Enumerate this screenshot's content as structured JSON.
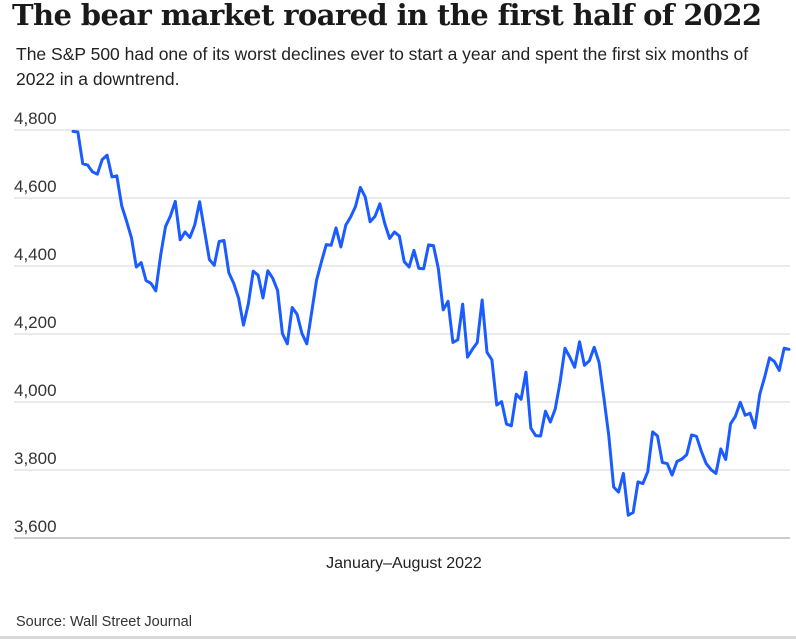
{
  "header": {
    "title": "The bear market roared in the first half of 2022",
    "subtitle": "The S&P 500 had one of its worst declines ever to start a year and spent the first six months of 2022 in a downtrend."
  },
  "footer": {
    "source": "Source: Wall Street Journal"
  },
  "chart_data": {
    "type": "line",
    "title": "The bear market roared in the first half of 2022",
    "subtitle": "The S&P 500 had one of its worst declines ever to start a year and spent the first six months of 2022 in a downtrend.",
    "xlabel": "January–August 2022",
    "ylabel": "",
    "ylim": [
      3600,
      4800
    ],
    "yticks": [
      4800,
      4600,
      4400,
      4200,
      4000,
      3800,
      3600
    ],
    "ytick_labels": [
      "4,800",
      "4,600",
      "4,400",
      "4,200",
      "4,000",
      "3,800",
      "3,600"
    ],
    "grid": true,
    "legend": "none",
    "colors": {
      "line": "#1a5cff",
      "grid": "#d4d4d4",
      "axis": "#999999"
    },
    "series": [
      {
        "values": [
          4796,
          4794,
          4701,
          4697,
          4677,
          4670,
          4713,
          4726,
          4662,
          4665,
          4577,
          4532,
          4483,
          4397,
          4410,
          4357,
          4349,
          4327,
          4432,
          4516,
          4547,
          4590,
          4477,
          4500,
          4484,
          4521,
          4589,
          4504,
          4419,
          4402,
          4472,
          4475,
          4380,
          4349,
          4305,
          4226,
          4289,
          4385,
          4373,
          4306,
          4386,
          4364,
          4328,
          4201,
          4171,
          4278,
          4258,
          4202,
          4171,
          4264,
          4358,
          4412,
          4463,
          4461,
          4512,
          4456,
          4520,
          4544,
          4575,
          4631,
          4603,
          4530,
          4546,
          4583,
          4525,
          4481,
          4500,
          4488,
          4413,
          4397,
          4446,
          4393,
          4392,
          4462,
          4460,
          4393,
          4271,
          4296,
          4175,
          4183,
          4288,
          4132,
          4155,
          4175,
          4300,
          4146,
          4124,
          3991,
          4001,
          3935,
          3930,
          4023,
          4008,
          4088,
          3923,
          3901,
          3900,
          3973,
          3941,
          3979,
          4058,
          4158,
          4132,
          4102,
          4177,
          4108,
          4121,
          4161,
          4117,
          4012,
          3901,
          3750,
          3735,
          3790,
          3667,
          3675,
          3765,
          3760,
          3795,
          3912,
          3900,
          3822,
          3819,
          3785,
          3825,
          3832,
          3845,
          3903,
          3899,
          3855,
          3819,
          3801,
          3790,
          3862,
          3831,
          3936,
          3958,
          3999,
          3961,
          3967,
          3924,
          4023,
          4073,
          4130,
          4119,
          4093,
          4158,
          4155
        ]
      }
    ]
  }
}
